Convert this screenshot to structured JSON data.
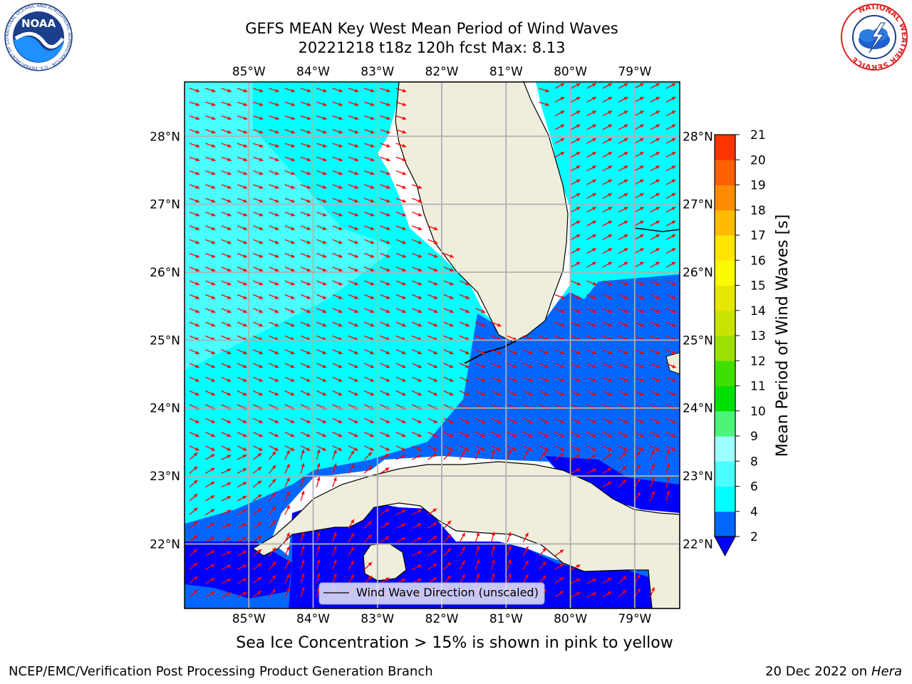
{
  "header": {
    "title_line1": "GEFS MEAN Key West Mean Period of Wind Waves",
    "title_line2": "20221218 t18z 120h fcst   Max: 8.13"
  },
  "logos": {
    "left": "NOAA",
    "left_ring": "NATIONAL OCEANIC AND ATMOSPHERIC ADMINISTRATION · U.S. DEPARTMENT OF COMMERCE",
    "right_ring": "NATIONAL WEATHER SERVICE"
  },
  "map": {
    "lon_labels": [
      "85°W",
      "84°W",
      "83°W",
      "82°W",
      "81°W",
      "80°W",
      "79°W"
    ],
    "lon_values": [
      -85,
      -84,
      -83,
      -82,
      -81,
      -80,
      -79
    ],
    "lat_labels": [
      "28°N",
      "27°N",
      "26°N",
      "25°N",
      "24°N",
      "23°N",
      "22°N"
    ],
    "lat_values": [
      28,
      27,
      26,
      25,
      24,
      23,
      22
    ],
    "lon_range": [
      -86,
      -78.3
    ],
    "lat_range": [
      21.05,
      28.8
    ],
    "legend_label": "Wind Wave Direction (unscaled)",
    "arrow_color": "#ff0000",
    "land_color": "#efeedc",
    "grid": true
  },
  "colorbar": {
    "label": "Mean Period of Wind Waves [s]",
    "ticks": [
      "2",
      "4",
      "6",
      "8",
      "9",
      "10",
      "11",
      "12",
      "13",
      "14",
      "15",
      "16",
      "17",
      "18",
      "19",
      "20",
      "21"
    ],
    "colors": [
      "#0066ff",
      "#00ffff",
      "#49ffff",
      "#9dffff",
      "#4af57a",
      "#00e000",
      "#3fe000",
      "#9be000",
      "#c8e300",
      "#e6e600",
      "#fafa00",
      "#ffe500",
      "#ffbb00",
      "#ff8c00",
      "#ff6000",
      "#ff3300"
    ],
    "under_color": "#0000ff"
  },
  "footer": {
    "note": "Sea Ice Concentration > 15% is shown in pink to yellow",
    "left": "NCEP/EMC/Verification Post Processing Product Generation Branch",
    "date": "20 Dec 2022 on",
    "machine": "Hera"
  }
}
